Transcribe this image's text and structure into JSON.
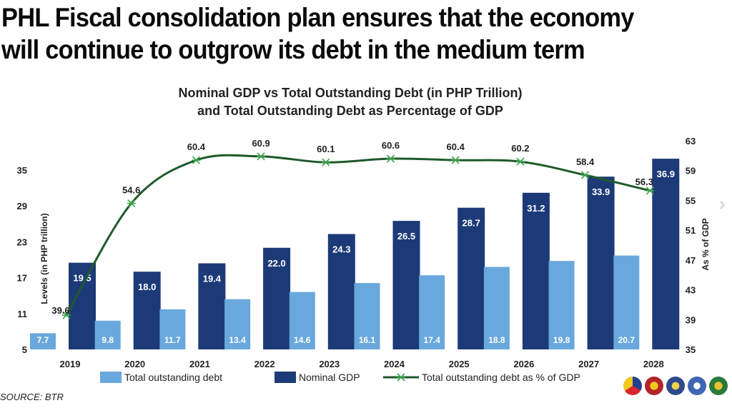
{
  "headline": {
    "line1": "PHL Fiscal consolidation plan ensures that the economy",
    "line2": "will continue to outgrow its debt in the medium term"
  },
  "source": "SOURCE: BTR",
  "chart_data": {
    "type": "bar",
    "title_line1": "Nominal GDP vs Total Outstanding Debt (in PHP Trillion)",
    "title_line2": "and Total Outstanding Debt as Percentage of GDP",
    "categories": [
      "2019",
      "2020",
      "2021",
      "2022",
      "2023",
      "2024",
      "2025",
      "2026",
      "2027",
      "2028"
    ],
    "series": [
      {
        "name": "Total outstanding debt",
        "type": "bar",
        "axis": "left",
        "color": "#69a8dd",
        "values": [
          7.7,
          9.8,
          11.7,
          13.4,
          14.6,
          16.1,
          17.4,
          18.8,
          19.8,
          20.7
        ]
      },
      {
        "name": "Nominal GDP",
        "type": "bar",
        "axis": "left",
        "color": "#1d3a78",
        "values": [
          19.5,
          18.0,
          19.4,
          22.0,
          24.3,
          26.5,
          28.7,
          31.2,
          33.9,
          36.9
        ]
      },
      {
        "name": "Total outstanding debt as % of GDP",
        "type": "line",
        "axis": "right",
        "color": "#1e5a2a",
        "values": [
          39.6,
          54.6,
          60.4,
          60.9,
          60.1,
          60.6,
          60.4,
          60.2,
          58.4,
          56.3
        ]
      }
    ],
    "left_axis": {
      "label": "Levels (in PHP trillion)",
      "ticks": [
        5,
        11,
        17,
        23,
        29,
        35
      ],
      "range": [
        5,
        35
      ]
    },
    "right_axis": {
      "label": "As % of GDP",
      "ticks": [
        35,
        39,
        43,
        47,
        51,
        55,
        59,
        63
      ],
      "range": [
        35,
        63
      ]
    },
    "grid": false,
    "legend_position": "bottom"
  }
}
